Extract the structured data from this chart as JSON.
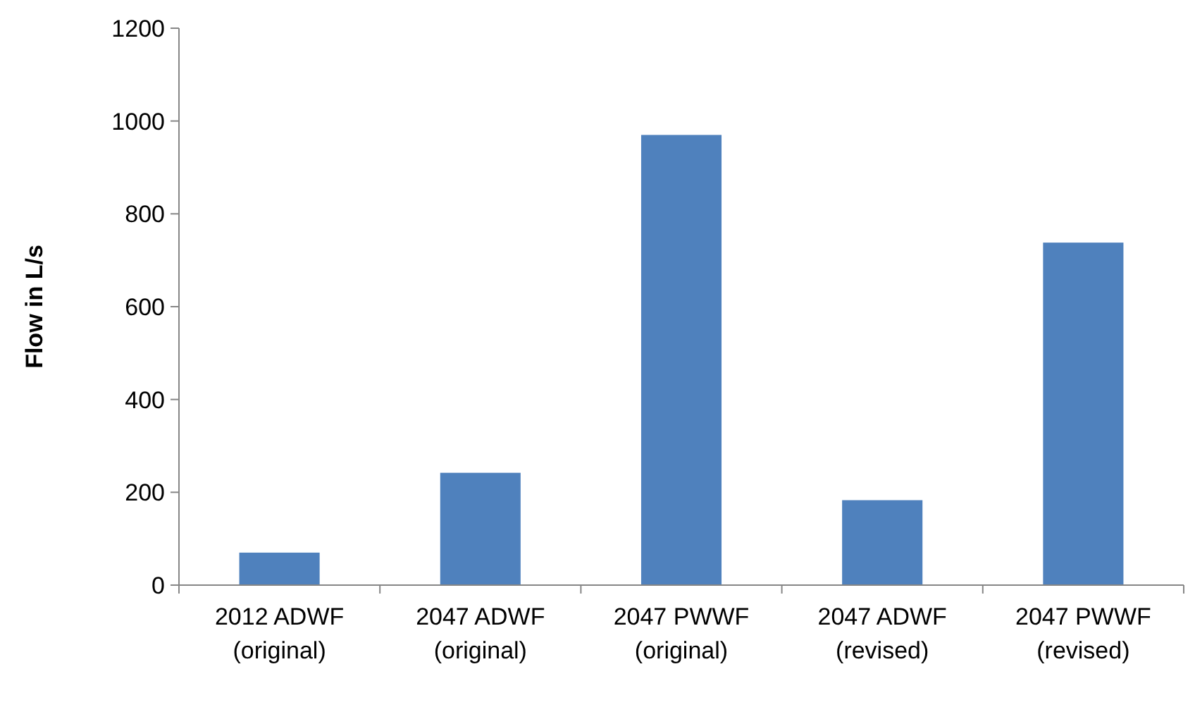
{
  "chart_data": {
    "type": "bar",
    "ylabel": "Flow in L/s",
    "categories": [
      "2012 ADWF (original)",
      "2047 ADWF (original)",
      "2047 PWWF (original)",
      "2047 ADWF (revised)",
      "2047 PWWF (revised)"
    ],
    "values": [
      70,
      242,
      970,
      183,
      738
    ],
    "color": "#4f81bd",
    "ylim": [
      0,
      1200
    ],
    "yticks": [
      0,
      200,
      400,
      600,
      800,
      1000,
      1200
    ]
  }
}
